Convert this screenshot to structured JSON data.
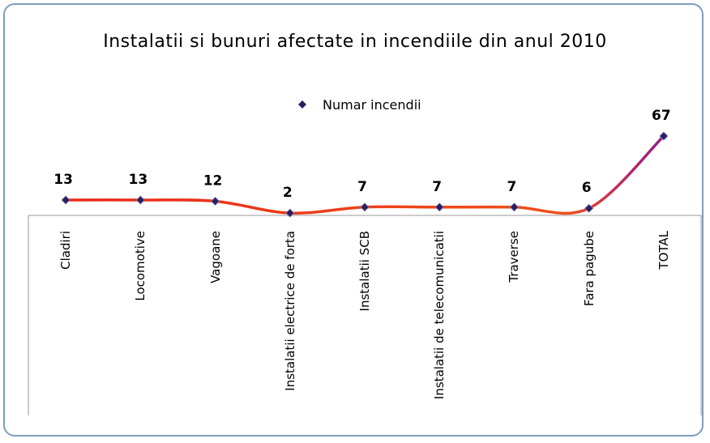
{
  "chart_data": {
    "type": "line",
    "title": "Instalatii si bunuri afectate in incendiile din anul 2010",
    "categories": [
      "Cladiri",
      "Locomotive",
      "Vagoane",
      "Instalatii electrice de forta",
      "Instalatii SCB",
      "Instalatii de telecomunicatii",
      "Traverse",
      "Fara pagube",
      "TOTAL"
    ],
    "series": [
      {
        "name": "Numar incendii",
        "color": "#e8261c",
        "marker_color": "#2b1f5c",
        "values": [
          13,
          13,
          12,
          2,
          7,
          7,
          7,
          6,
          67
        ]
      }
    ],
    "ylim": [
      0,
      80
    ],
    "legend": "top"
  }
}
